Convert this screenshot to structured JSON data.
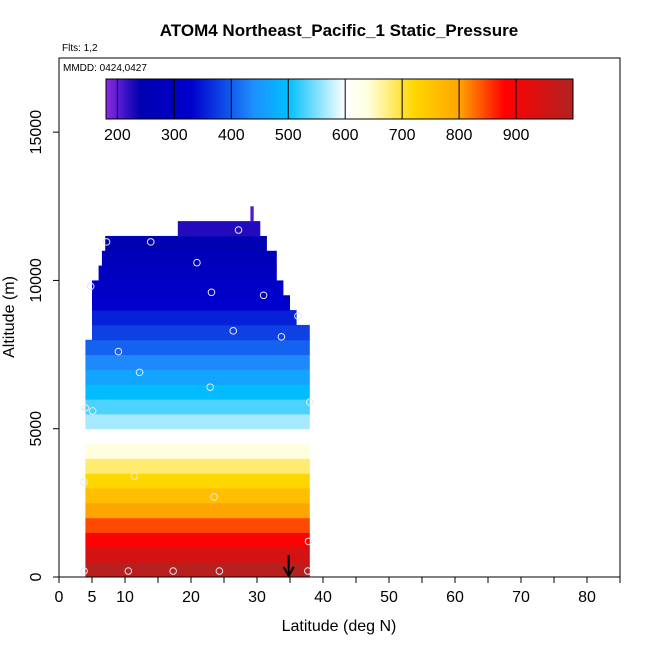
{
  "chart_data": {
    "type": "heatmap",
    "title": "ATOM4 Northeast_Pacific_1 Static_Pressure",
    "subtitle_flights": "Flts: 1,2",
    "subtitle_dates": "MMDD: 0424,0427",
    "xlabel": "Latitude (deg N)",
    "ylabel": "Altitude (m)",
    "xlim": [
      0,
      85
    ],
    "ylim": [
      0,
      17500
    ],
    "x_ticks": [
      0,
      5,
      10,
      20,
      30,
      40,
      50,
      60,
      70,
      80
    ],
    "x_minor_ticks": [
      15,
      25,
      35,
      45,
      55,
      65,
      75,
      85
    ],
    "y_ticks": [
      0,
      5000,
      10000,
      15000
    ],
    "grid": false,
    "colorbar": {
      "placement": "top-inside",
      "range": [
        180,
        1000
      ],
      "ticks": [
        200,
        300,
        400,
        500,
        600,
        700,
        800,
        900
      ],
      "colors": [
        "#8a2be2",
        "#0000b0",
        "#0000cd",
        "#1e90ff",
        "#00bfff",
        "#ffffff",
        "#ffffe0",
        "#ffd700",
        "#ffa500",
        "#ff0000",
        "#b22222"
      ],
      "color_stops": [
        180,
        240,
        330,
        440,
        500,
        600,
        640,
        720,
        800,
        880,
        1000
      ]
    },
    "layers": [
      {
        "alt_min": 0,
        "alt_max": 500,
        "lat_min": 4,
        "lat_max": 38,
        "value": 990
      },
      {
        "alt_min": 500,
        "alt_max": 1000,
        "lat_min": 4,
        "lat_max": 38,
        "value": 945
      },
      {
        "alt_min": 1000,
        "alt_max": 1500,
        "lat_min": 4,
        "lat_max": 38,
        "value": 890
      },
      {
        "alt_min": 1500,
        "alt_max": 2000,
        "lat_min": 4,
        "lat_max": 38,
        "value": 845
      },
      {
        "alt_min": 2000,
        "alt_max": 2500,
        "lat_min": 4,
        "lat_max": 38,
        "value": 800
      },
      {
        "alt_min": 2500,
        "alt_max": 3000,
        "lat_min": 4,
        "lat_max": 38,
        "value": 760
      },
      {
        "alt_min": 3000,
        "alt_max": 3500,
        "lat_min": 4,
        "lat_max": 38,
        "value": 720
      },
      {
        "alt_min": 3500,
        "alt_max": 4000,
        "lat_min": 4,
        "lat_max": 38,
        "value": 680
      },
      {
        "alt_min": 4000,
        "alt_max": 4500,
        "lat_min": 4,
        "lat_max": 38,
        "value": 640
      },
      {
        "alt_min": 4500,
        "alt_max": 5000,
        "lat_min": 4,
        "lat_max": 38,
        "value": 600
      },
      {
        "alt_min": 5000,
        "alt_max": 5500,
        "lat_min": 4,
        "lat_max": 38,
        "value": 565
      },
      {
        "alt_min": 5500,
        "alt_max": 6000,
        "lat_min": 4,
        "lat_max": 38,
        "value": 530
      },
      {
        "alt_min": 6000,
        "alt_max": 6500,
        "lat_min": 4,
        "lat_max": 38,
        "value": 495
      },
      {
        "alt_min": 6500,
        "alt_max": 7000,
        "lat_min": 4,
        "lat_max": 38,
        "value": 465
      },
      {
        "alt_min": 7000,
        "alt_max": 7500,
        "lat_min": 4,
        "lat_max": 38,
        "value": 435
      },
      {
        "alt_min": 7500,
        "alt_max": 8000,
        "lat_min": 4,
        "lat_max": 38,
        "value": 405
      },
      {
        "alt_min": 8000,
        "alt_max": 8500,
        "lat_min": 5,
        "lat_max": 38,
        "value": 380
      },
      {
        "alt_min": 8500,
        "alt_max": 9000,
        "lat_min": 5,
        "lat_max": 36,
        "value": 355
      },
      {
        "alt_min": 9000,
        "alt_max": 9500,
        "lat_min": 5,
        "lat_max": 35,
        "value": 330
      },
      {
        "alt_min": 9500,
        "alt_max": 10000,
        "lat_min": 5,
        "lat_max": 34,
        "value": 310
      },
      {
        "alt_min": 10000,
        "alt_max": 10500,
        "lat_min": 6,
        "lat_max": 33,
        "value": 290
      },
      {
        "alt_min": 10500,
        "alt_max": 11000,
        "lat_min": 6.5,
        "lat_max": 33,
        "value": 270
      },
      {
        "alt_min": 11000,
        "alt_max": 11500,
        "lat_min": 7,
        "lat_max": 31.5,
        "value": 250
      },
      {
        "alt_min": 11500,
        "alt_max": 12000,
        "lat_min": 18,
        "lat_max": 30.5,
        "value": 225
      },
      {
        "alt_min": 12000,
        "alt_max": 12500,
        "lat_min": 29,
        "lat_max": 29.5,
        "value": 205
      }
    ],
    "points": [
      {
        "lat": 3.8,
        "alt": 200
      },
      {
        "lat": 10.5,
        "alt": 200
      },
      {
        "lat": 17.3,
        "alt": 200
      },
      {
        "lat": 24.3,
        "alt": 200
      },
      {
        "lat": 37.7,
        "alt": 200
      },
      {
        "lat": 37.8,
        "alt": 1200
      },
      {
        "lat": 3.8,
        "alt": 3200
      },
      {
        "lat": 11.4,
        "alt": 3400
      },
      {
        "lat": 23.5,
        "alt": 2700
      },
      {
        "lat": 4.0,
        "alt": 5700
      },
      {
        "lat": 5.1,
        "alt": 5600
      },
      {
        "lat": 38.0,
        "alt": 5900
      },
      {
        "lat": 22.9,
        "alt": 6400
      },
      {
        "lat": 12.2,
        "alt": 6900
      },
      {
        "lat": 9.0,
        "alt": 7600
      },
      {
        "lat": 26.4,
        "alt": 8300
      },
      {
        "lat": 33.7,
        "alt": 8100
      },
      {
        "lat": 36.2,
        "alt": 8800
      },
      {
        "lat": 4.8,
        "alt": 9800
      },
      {
        "lat": 23.1,
        "alt": 9600
      },
      {
        "lat": 31.0,
        "alt": 9500
      },
      {
        "lat": 20.9,
        "alt": 10600
      },
      {
        "lat": 7.2,
        "alt": 11300
      },
      {
        "lat": 13.9,
        "alt": 11300
      },
      {
        "lat": 27.2,
        "alt": 11700
      }
    ],
    "arrow_marker": {
      "lat": 34.8
    }
  }
}
